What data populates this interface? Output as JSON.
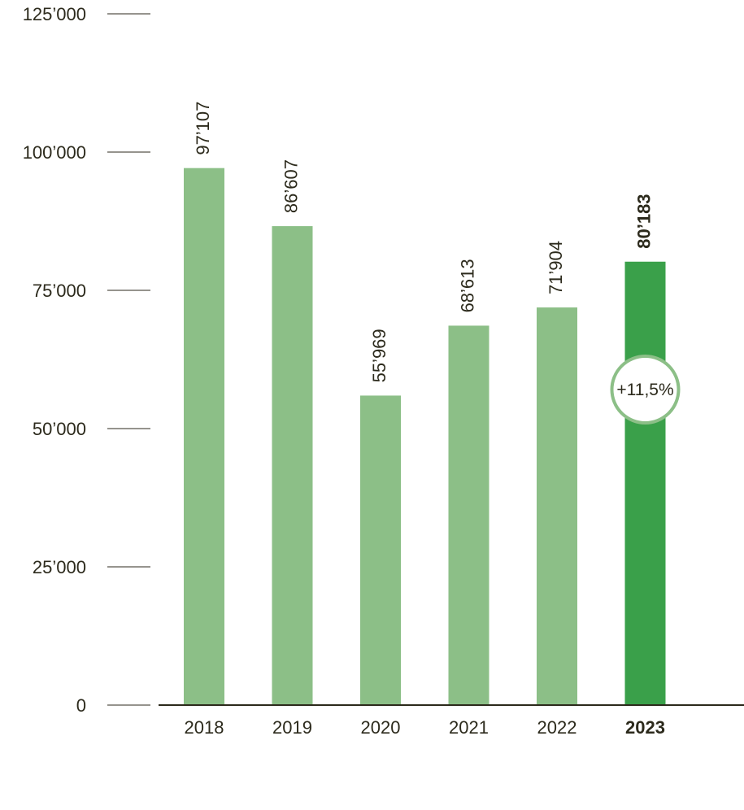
{
  "chart_data": {
    "type": "bar",
    "categories": [
      "2018",
      "2019",
      "2020",
      "2021",
      "2022",
      "2023"
    ],
    "values": [
      97107,
      86607,
      55969,
      68613,
      71904,
      80183
    ],
    "value_labels": [
      "97’107",
      "86’607",
      "55’969",
      "68’613",
      "71’904",
      "80’183"
    ],
    "highlight_index": 5,
    "highlight_badge": "+11,5%",
    "y_ticks": [
      {
        "value": 0,
        "label": "0"
      },
      {
        "value": 25000,
        "label": "25’000"
      },
      {
        "value": 50000,
        "label": "50’000"
      },
      {
        "value": 75000,
        "label": "75’000"
      },
      {
        "value": 100000,
        "label": "100’000"
      },
      {
        "value": 125000,
        "label": "125’000"
      }
    ],
    "ylim": [
      0,
      125000
    ],
    "title": "",
    "xlabel": "",
    "ylabel": "",
    "grid": false,
    "colors": {
      "bar": "#8cbf87",
      "highlight": "#3aa04a",
      "text": "#2c2a1c",
      "axis": "#2c2a1c",
      "badge_border": "#8cbf87",
      "badge_fill": "#ffffff"
    }
  }
}
